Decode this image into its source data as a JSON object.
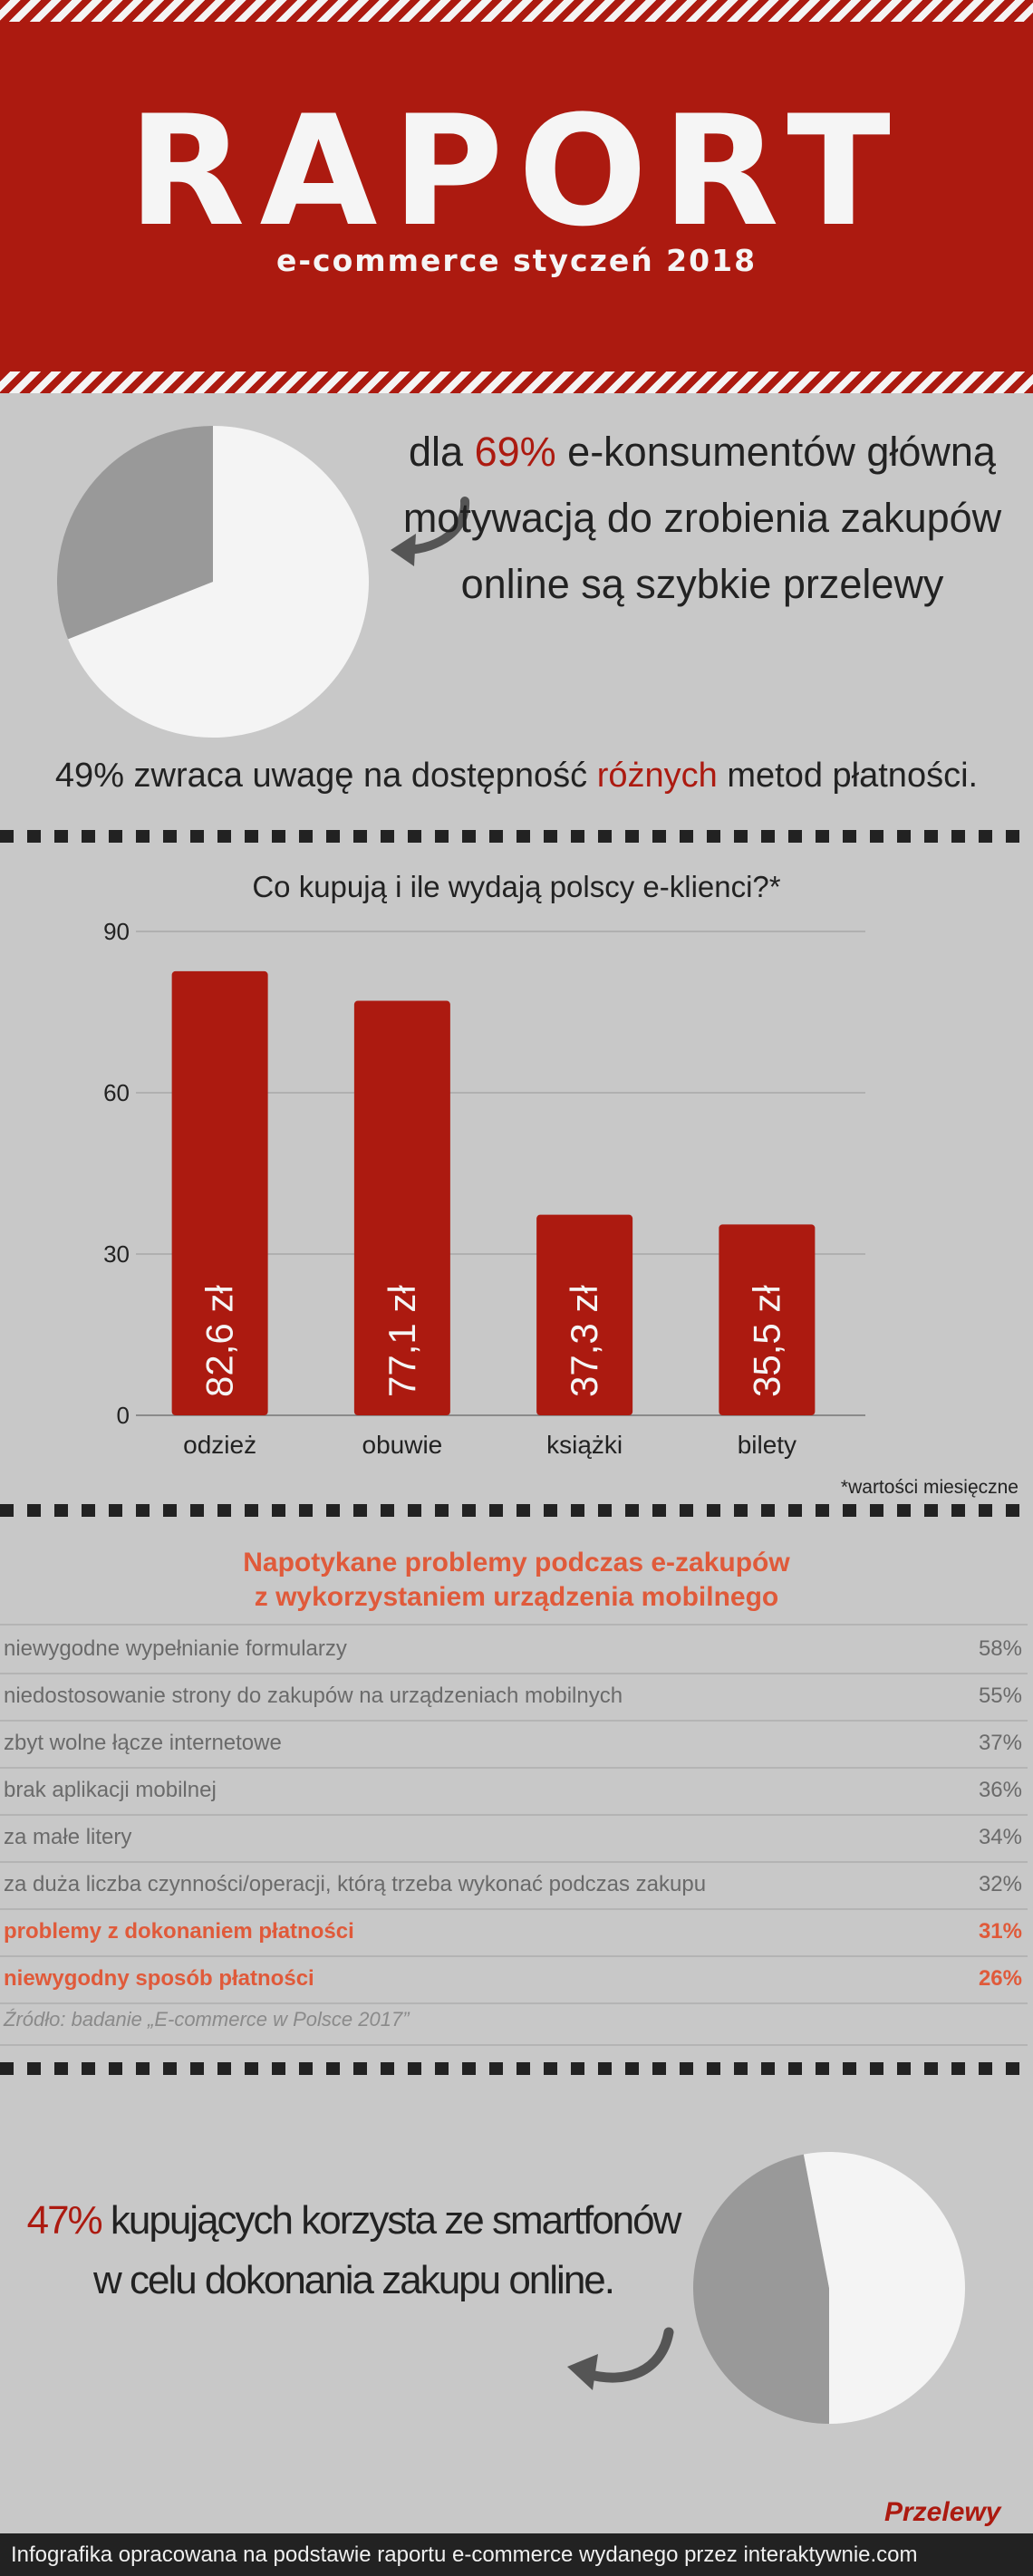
{
  "header": {
    "title": "RAPORT",
    "subtitle": "e-commerce styczeń 2018"
  },
  "section1": {
    "pie_share_pct": 69,
    "text_pre": "dla ",
    "text_highlight": "69%",
    "text_post": " e-konsumentów główną motywacją do zrobienia zakupów online są szybkie przelewy",
    "line_pre": "49% zwraca uwagę na dostępność ",
    "line_highlight": "różnych",
    "line_post": " metod płatności."
  },
  "chart_data": {
    "type": "bar",
    "title": "Co kupują i ile wydają polscy e-klienci?*",
    "categories": [
      "odzież",
      "obuwie",
      "książki",
      "bilety"
    ],
    "values": [
      82.6,
      77.1,
      37.3,
      35.5
    ],
    "data_labels": [
      "82,6 zł",
      "77,1 zł",
      "37,3 zł",
      "35,5 zł"
    ],
    "y_ticks": [
      "0",
      "30",
      "60",
      "90"
    ],
    "ylim": [
      0,
      90
    ],
    "grid": true,
    "bar_color": "#ac1a10",
    "footnote": "*wartości miesięczne"
  },
  "problems": {
    "title_line1": "Napotykane problemy podczas e-zakupów",
    "title_line2": "z wykorzystaniem urządzenia mobilnego",
    "rows": [
      {
        "label": "niewygodne wypełnianie formularzy",
        "value": "58%"
      },
      {
        "label": "niedostosowanie strony do zakupów na urządzeniach mobilnych",
        "value": "55%"
      },
      {
        "label": "zbyt wolne łącze internetowe",
        "value": "37%"
      },
      {
        "label": "brak aplikacji mobilnej",
        "value": "36%"
      },
      {
        "label": "za małe litery",
        "value": "34%"
      },
      {
        "label": "za duża liczba czynności/operacji, którą trzeba wykonać podczas zakupu",
        "value": "32%"
      },
      {
        "label": "problemy z dokonaniem płatności",
        "value": "31%"
      },
      {
        "label": "niewygodny sposób płatności",
        "value": "26%"
      }
    ],
    "source": "Źródło: badanie „E-commerce w Polsce 2017”"
  },
  "section4": {
    "pie_share_pct": 47,
    "text_highlight": "47%",
    "text_post": " kupujących korzysta ze smartfonów w celu dokonania zakupu online."
  },
  "brand": "Przelewy",
  "footer": "Infografika opracowana na podstawie raportu e-commerce wydanego przez interaktywnie.com",
  "colors": {
    "accent": "#ac1a10",
    "highlight_orange": "#e05a3a",
    "background": "#c8c8c8",
    "pie_light": "#f4f4f4",
    "pie_dark": "#999999"
  }
}
